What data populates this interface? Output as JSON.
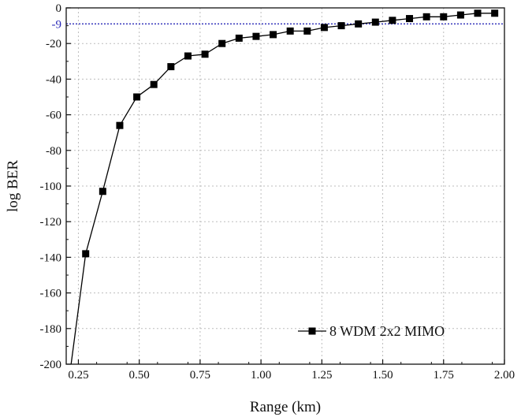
{
  "chart_data": {
    "type": "line",
    "title": "",
    "xlabel": "Range (km)",
    "ylabel": "log BER",
    "xlim": [
      0.2,
      2.0
    ],
    "ylim": [
      -200,
      0
    ],
    "xticks": [
      0.25,
      0.5,
      0.75,
      1.0,
      1.25,
      1.5,
      1.75,
      2.0
    ],
    "xtick_labels": [
      "0.25",
      "0.50",
      "0.75",
      "1.00",
      "1.25",
      "1.50",
      "1.75",
      "2.00"
    ],
    "yticks": [
      0,
      -20,
      -40,
      -60,
      -80,
      -100,
      -120,
      -140,
      -160,
      -180,
      -200
    ],
    "ytick_labels": [
      "0",
      "-20",
      "-40",
      "-60",
      "-80",
      "-100",
      "-120",
      "-140",
      "-160",
      "-180",
      "-200"
    ],
    "grid": true,
    "legend_position": "bottom-right",
    "reference_line": {
      "y": -9,
      "label": "-9",
      "color": "#2a2ab8"
    },
    "series": [
      {
        "name": "8 WDM 2x2 MIMO",
        "color": "#000000",
        "marker": "square",
        "line_start": {
          "x": 0.22,
          "y": -200
        },
        "x": [
          0.28,
          0.35,
          0.42,
          0.49,
          0.56,
          0.63,
          0.7,
          0.77,
          0.84,
          0.91,
          0.98,
          1.05,
          1.12,
          1.19,
          1.26,
          1.33,
          1.4,
          1.47,
          1.54,
          1.61,
          1.68,
          1.75,
          1.82,
          1.89,
          1.96
        ],
        "y": [
          -138,
          -103,
          -66,
          -50,
          -43,
          -33,
          -27,
          -26,
          -20,
          -17,
          -16,
          -15,
          -13,
          -13,
          -11,
          -10,
          -9,
          -8,
          -7,
          -6,
          -5,
          -5,
          -4,
          -3,
          -3
        ]
      }
    ]
  }
}
